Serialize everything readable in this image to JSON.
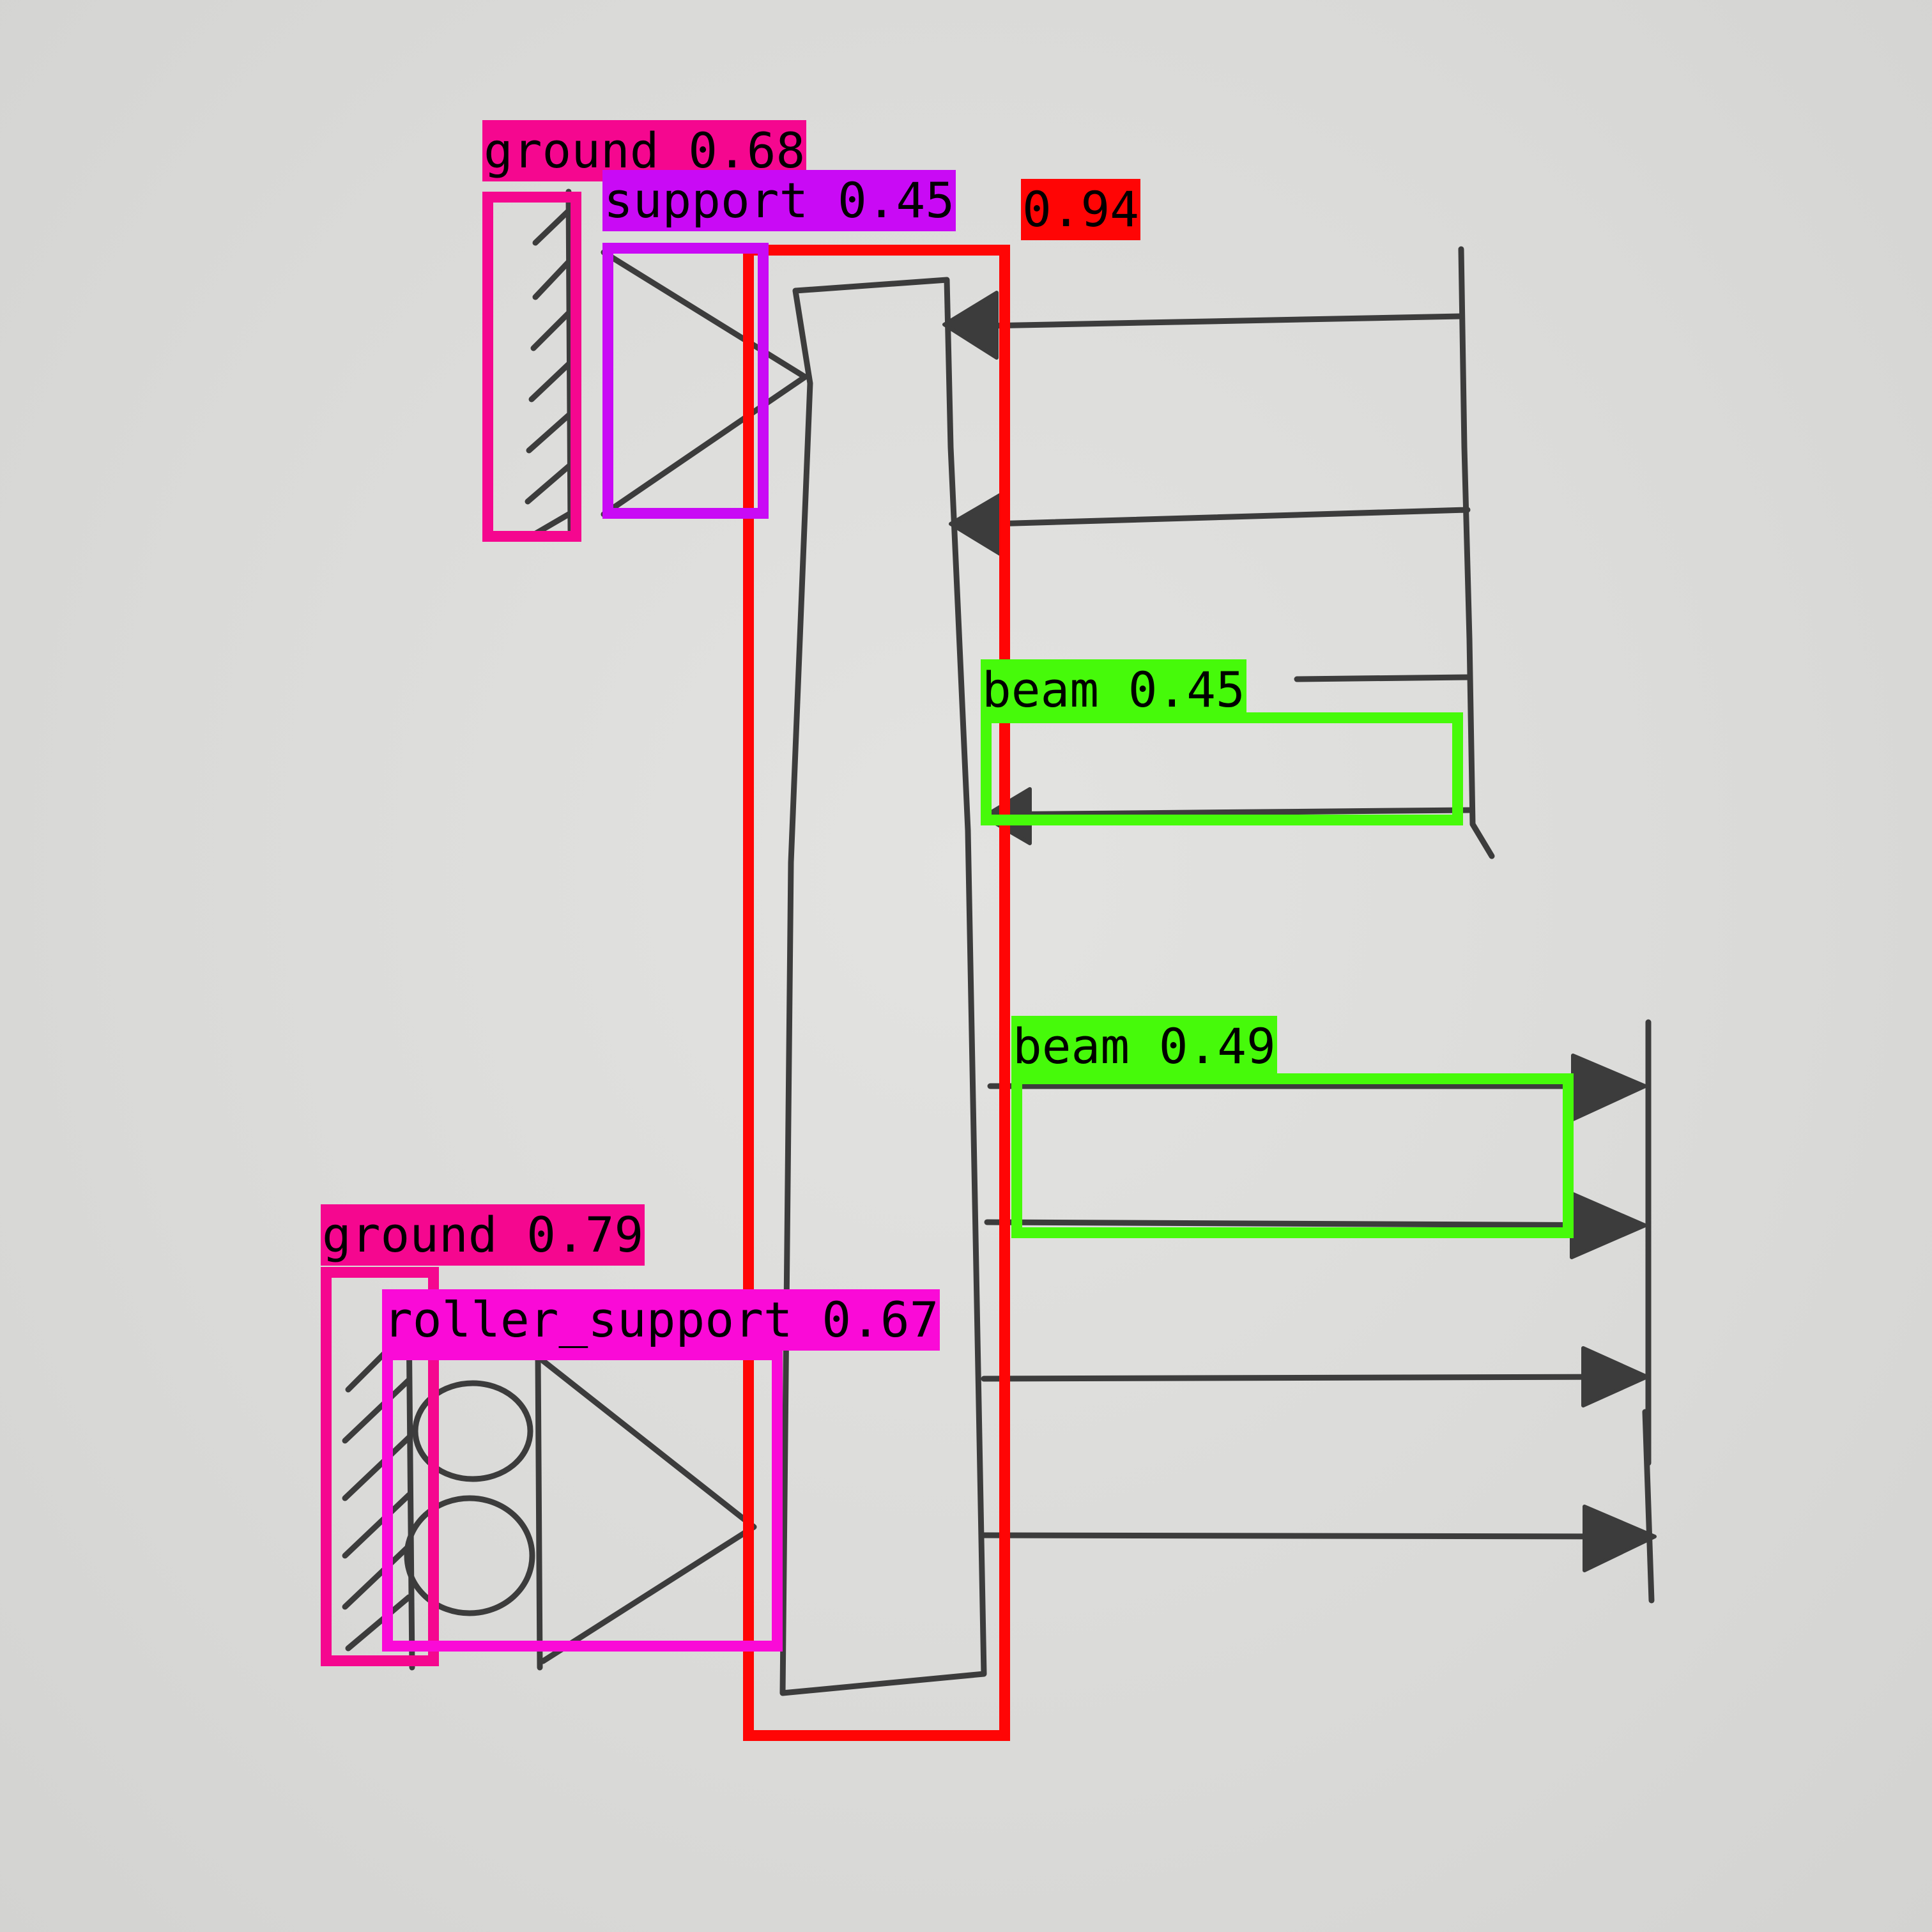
{
  "colors": {
    "paper": "#dcdcda",
    "pencil": "#3c3c3c",
    "ground": "#f5078f",
    "support": "#c90af5",
    "beam_vertical": "#ff0505",
    "beam": "#46fa0a",
    "roller_support": "#fa0ad7"
  },
  "detections": [
    {
      "id": "ground-top",
      "label": "ground 0.68",
      "color_key": "ground"
    },
    {
      "id": "beam-vertical",
      "label": "0.94",
      "color_key": "beam_vertical"
    },
    {
      "id": "support-top",
      "label": "support 0.45",
      "color_key": "support"
    },
    {
      "id": "beam-upper",
      "label": "beam 0.45",
      "color_key": "beam"
    },
    {
      "id": "beam-lower",
      "label": "beam 0.49",
      "color_key": "beam"
    },
    {
      "id": "ground-bottom",
      "label": "ground 0.79",
      "color_key": "ground"
    },
    {
      "id": "roller-support",
      "label": "roller_support 0.67",
      "color_key": "roller_support"
    }
  ]
}
